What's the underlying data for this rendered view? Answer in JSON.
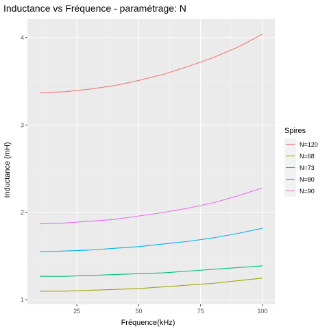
{
  "chart_data": {
    "type": "line",
    "title": "Inductance vs Fréquence - paramétrage: N",
    "xlabel": "Fréquence(kHz)",
    "ylabel": "Inductance (mH)",
    "xlim": [
      5,
      105
    ],
    "ylim": [
      0.95,
      4.21
    ],
    "x_ticks": [
      25,
      50,
      75,
      100
    ],
    "y_ticks": [
      1,
      2,
      3,
      4
    ],
    "grid": true,
    "legend": {
      "title": "Spires",
      "position": "right",
      "entries": [
        "N=120",
        "N=68",
        "N=73",
        "N=80",
        "N=90"
      ]
    },
    "x": [
      10,
      20,
      30,
      40,
      50,
      60,
      70,
      80,
      90,
      100
    ],
    "series": [
      {
        "name": "N=120",
        "color": "#F8766D",
        "values": [
          3.37,
          3.38,
          3.41,
          3.45,
          3.51,
          3.58,
          3.67,
          3.77,
          3.89,
          4.04
        ]
      },
      {
        "name": "N=68",
        "color": "#A3A500",
        "values": [
          1.1,
          1.1,
          1.11,
          1.12,
          1.13,
          1.15,
          1.17,
          1.19,
          1.22,
          1.25
        ]
      },
      {
        "name": "N=73",
        "color": "#00BF7D",
        "values": [
          1.27,
          1.27,
          1.28,
          1.29,
          1.3,
          1.31,
          1.33,
          1.35,
          1.37,
          1.39
        ]
      },
      {
        "name": "N=80",
        "color": "#00B0F6",
        "values": [
          1.55,
          1.56,
          1.57,
          1.59,
          1.61,
          1.64,
          1.67,
          1.71,
          1.76,
          1.82
        ]
      },
      {
        "name": "N=90",
        "color": "#E76BF3",
        "values": [
          1.87,
          1.88,
          1.9,
          1.92,
          1.96,
          2.0,
          2.05,
          2.11,
          2.19,
          2.28
        ]
      }
    ]
  }
}
